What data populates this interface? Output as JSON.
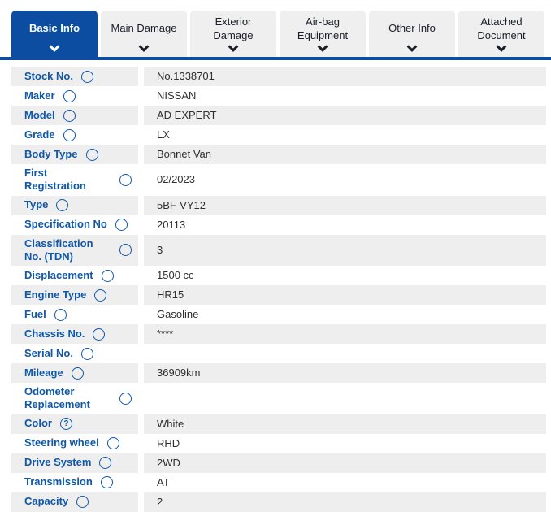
{
  "tabs": [
    {
      "label": "Basic Info",
      "active": true
    },
    {
      "label": "Main Damage",
      "active": false
    },
    {
      "label": "Exterior Damage",
      "active": false
    },
    {
      "label": "Air-bag Equipment",
      "active": false
    },
    {
      "label": "Other Info",
      "active": false
    },
    {
      "label": "Attached Document",
      "active": false
    }
  ],
  "table": {
    "rows": [
      {
        "label": "Stock No.",
        "value": "No.1338701"
      },
      {
        "label": "Maker",
        "value": "NISSAN"
      },
      {
        "label": "Model",
        "value": "AD EXPERT"
      },
      {
        "label": "Grade",
        "value": "LX"
      },
      {
        "label": "Body Type",
        "value": "Bonnet Van"
      },
      {
        "label": "First Registration",
        "value": "02/2023"
      },
      {
        "label": "Type",
        "value": "5BF-VY12"
      },
      {
        "label": "Specification No",
        "value": "20113"
      },
      {
        "label": "Classification No. (TDN)",
        "value": "3"
      },
      {
        "label": "Displacement",
        "value": "1500 cc"
      },
      {
        "label": "Engine Type",
        "value": "HR15"
      },
      {
        "label": "Fuel",
        "value": "Gasoline"
      },
      {
        "label": "Chassis No.",
        "value": "****"
      },
      {
        "label": "Serial No.",
        "value": ""
      },
      {
        "label": "Mileage",
        "value": "36909km"
      },
      {
        "label": "Odometer Replacement",
        "value": ""
      },
      {
        "label": "Color",
        "value": "White",
        "help": true
      },
      {
        "label": "Steering wheel",
        "value": "RHD"
      },
      {
        "label": "Drive System",
        "value": "2WD"
      },
      {
        "label": "Transmission",
        "value": "AT"
      },
      {
        "label": "Capacity",
        "value": "2"
      }
    ]
  },
  "icons": {
    "help_glyph": "?"
  },
  "colors": {
    "accent_blue": "#0c4da2",
    "label_blue": "#0e57a9",
    "row_gray": "#eeeeee",
    "inactive_tab_bg": "#efefef",
    "inactive_tab_text": "#1b1e28",
    "value_text": "#2f2f2f"
  }
}
